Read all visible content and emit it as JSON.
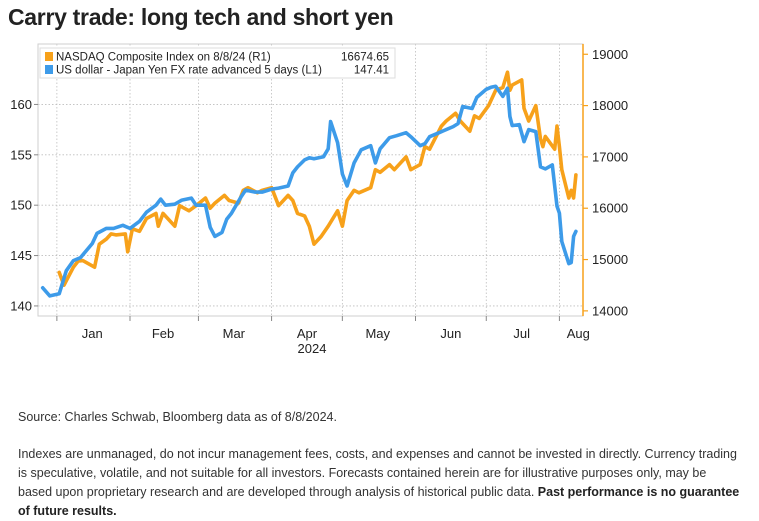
{
  "title": "Carry trade: long tech and short yen",
  "source": "Source: Charles Schwab, Bloomberg data as of 8/8/2024.",
  "disclaimer": "Indexes are unmanaged, do not incur management fees, costs, and expenses and cannot be invested in directly. Currency trading is speculative, volatile, and not suitable for all investors. Forecasts contained herein are for illustrative purposes only, may be based upon proprietary research and are developed through analysis of historical public data.",
  "disclaimer_bold": "Past performance is no guarantee of future results.",
  "colors": {
    "nasdaq": "#F7A11A",
    "usdjpy": "#3D9BE9"
  },
  "chart_data": {
    "type": "line",
    "grid": true,
    "legend_position": "top-left",
    "xlabel": "2024",
    "x_ticks": [
      "Jan",
      "Feb",
      "Mar",
      "Apr",
      "May",
      "Jun",
      "Jul",
      "Aug"
    ],
    "x_range": [
      "2024-01-01",
      "2024-08-08"
    ],
    "y_left": {
      "ticks": [
        "140",
        "145",
        "150",
        "155",
        "160"
      ],
      "range": [
        139,
        166
      ]
    },
    "y_right": {
      "ticks": [
        "14000",
        "15000",
        "16000",
        "17000",
        "18000",
        "19000"
      ],
      "range": [
        13900,
        19200
      ]
    },
    "series": [
      {
        "name": "NASDAQ Composite Index on 8/8/24 (R1)",
        "legend_value": "16674.65",
        "axis": "right",
        "color": "#F7A11A",
        "points": [
          [
            "2024-01-02",
            14750
          ],
          [
            "2024-01-04",
            14500
          ],
          [
            "2024-01-08",
            14850
          ],
          [
            "2024-01-10",
            14970
          ],
          [
            "2024-01-12",
            14980
          ],
          [
            "2024-01-17",
            14850
          ],
          [
            "2024-01-19",
            15300
          ],
          [
            "2024-01-22",
            15400
          ],
          [
            "2024-01-24",
            15500
          ],
          [
            "2024-01-26",
            15480
          ],
          [
            "2024-01-30",
            15500
          ],
          [
            "2024-01-31",
            15150
          ],
          [
            "2024-02-02",
            15600
          ],
          [
            "2024-02-05",
            15550
          ],
          [
            "2024-02-08",
            15800
          ],
          [
            "2024-02-12",
            15900
          ],
          [
            "2024-02-13",
            15650
          ],
          [
            "2024-02-15",
            15900
          ],
          [
            "2024-02-20",
            15650
          ],
          [
            "2024-02-22",
            16050
          ],
          [
            "2024-02-26",
            15950
          ],
          [
            "2024-02-29",
            16050
          ],
          [
            "2024-03-04",
            16200
          ],
          [
            "2024-03-06",
            16000
          ],
          [
            "2024-03-08",
            16100
          ],
          [
            "2024-03-12",
            16250
          ],
          [
            "2024-03-14",
            16150
          ],
          [
            "2024-03-18",
            16100
          ],
          [
            "2024-03-20",
            16350
          ],
          [
            "2024-03-22",
            16400
          ],
          [
            "2024-03-26",
            16300
          ],
          [
            "2024-03-28",
            16350
          ],
          [
            "2024-04-01",
            16400
          ],
          [
            "2024-04-04",
            16050
          ],
          [
            "2024-04-08",
            16250
          ],
          [
            "2024-04-10",
            16150
          ],
          [
            "2024-04-12",
            15900
          ],
          [
            "2024-04-15",
            15850
          ],
          [
            "2024-04-17",
            15650
          ],
          [
            "2024-04-19",
            15300
          ],
          [
            "2024-04-22",
            15450
          ],
          [
            "2024-04-25",
            15650
          ],
          [
            "2024-04-29",
            15950
          ],
          [
            "2024-05-01",
            15650
          ],
          [
            "2024-05-03",
            16150
          ],
          [
            "2024-05-06",
            16350
          ],
          [
            "2024-05-08",
            16300
          ],
          [
            "2024-05-13",
            16400
          ],
          [
            "2024-05-15",
            16750
          ],
          [
            "2024-05-17",
            16700
          ],
          [
            "2024-05-21",
            16850
          ],
          [
            "2024-05-23",
            16750
          ],
          [
            "2024-05-28",
            17000
          ],
          [
            "2024-05-30",
            16750
          ],
          [
            "2024-06-03",
            16850
          ],
          [
            "2024-06-05",
            17200
          ],
          [
            "2024-06-07",
            17150
          ],
          [
            "2024-06-12",
            17600
          ],
          [
            "2024-06-14",
            17700
          ],
          [
            "2024-06-18",
            17850
          ],
          [
            "2024-06-20",
            17700
          ],
          [
            "2024-06-24",
            17500
          ],
          [
            "2024-06-26",
            17800
          ],
          [
            "2024-06-28",
            17750
          ],
          [
            "2024-07-02",
            18000
          ],
          [
            "2024-07-05",
            18300
          ],
          [
            "2024-07-08",
            18350
          ],
          [
            "2024-07-10",
            18650
          ],
          [
            "2024-07-11",
            18300
          ],
          [
            "2024-07-12",
            18400
          ],
          [
            "2024-07-16",
            18500
          ],
          [
            "2024-07-17",
            17950
          ],
          [
            "2024-07-19",
            17700
          ],
          [
            "2024-07-22",
            18000
          ],
          [
            "2024-07-24",
            17350
          ],
          [
            "2024-07-25",
            17200
          ],
          [
            "2024-07-26",
            17400
          ],
          [
            "2024-07-30",
            17150
          ],
          [
            "2024-07-31",
            17600
          ],
          [
            "2024-08-01",
            17200
          ],
          [
            "2024-08-02",
            16750
          ],
          [
            "2024-08-05",
            16200
          ],
          [
            "2024-08-06",
            16350
          ],
          [
            "2024-08-07",
            16200
          ],
          [
            "2024-08-08",
            16650
          ]
        ]
      },
      {
        "name": "US dollar - Japan Yen FX rate advanced 5 days (L1)",
        "legend_value": "147.41",
        "axis": "left",
        "color": "#3D9BE9",
        "points": [
          [
            "2023-12-26",
            141.8
          ],
          [
            "2023-12-29",
            141.0
          ],
          [
            "2024-01-02",
            141.2
          ],
          [
            "2024-01-05",
            143.5
          ],
          [
            "2024-01-08",
            144.5
          ],
          [
            "2024-01-11",
            144.8
          ],
          [
            "2024-01-16",
            146.2
          ],
          [
            "2024-01-18",
            147.2
          ],
          [
            "2024-01-22",
            147.7
          ],
          [
            "2024-01-25",
            147.7
          ],
          [
            "2024-01-29",
            148.0
          ],
          [
            "2024-02-01",
            147.7
          ],
          [
            "2024-02-05",
            148.4
          ],
          [
            "2024-02-08",
            149.3
          ],
          [
            "2024-02-12",
            150.0
          ],
          [
            "2024-02-14",
            150.6
          ],
          [
            "2024-02-16",
            150.0
          ],
          [
            "2024-02-20",
            150.1
          ],
          [
            "2024-02-23",
            150.5
          ],
          [
            "2024-02-27",
            150.7
          ],
          [
            "2024-02-29",
            150.0
          ],
          [
            "2024-03-04",
            150.0
          ],
          [
            "2024-03-06",
            147.8
          ],
          [
            "2024-03-08",
            146.9
          ],
          [
            "2024-03-11",
            147.3
          ],
          [
            "2024-03-13",
            148.6
          ],
          [
            "2024-03-15",
            149.2
          ],
          [
            "2024-03-19",
            150.8
          ],
          [
            "2024-03-21",
            151.5
          ],
          [
            "2024-03-25",
            151.3
          ],
          [
            "2024-03-28",
            151.3
          ],
          [
            "2024-04-01",
            151.6
          ],
          [
            "2024-04-04",
            151.7
          ],
          [
            "2024-04-08",
            151.9
          ],
          [
            "2024-04-10",
            153.2
          ],
          [
            "2024-04-12",
            153.8
          ],
          [
            "2024-04-15",
            154.5
          ],
          [
            "2024-04-17",
            154.7
          ],
          [
            "2024-04-19",
            154.6
          ],
          [
            "2024-04-23",
            154.8
          ],
          [
            "2024-04-25",
            155.6
          ],
          [
            "2024-04-26",
            158.3
          ],
          [
            "2024-04-29",
            156.2
          ],
          [
            "2024-05-01",
            153.1
          ],
          [
            "2024-05-03",
            151.9
          ],
          [
            "2024-05-06",
            154.2
          ],
          [
            "2024-05-09",
            155.5
          ],
          [
            "2024-05-13",
            155.9
          ],
          [
            "2024-05-15",
            154.2
          ],
          [
            "2024-05-17",
            155.6
          ],
          [
            "2024-05-21",
            156.7
          ],
          [
            "2024-05-24",
            156.9
          ],
          [
            "2024-05-28",
            157.2
          ],
          [
            "2024-05-30",
            156.8
          ],
          [
            "2024-06-03",
            155.9
          ],
          [
            "2024-06-05",
            156.1
          ],
          [
            "2024-06-07",
            156.8
          ],
          [
            "2024-06-11",
            157.2
          ],
          [
            "2024-06-13",
            157.4
          ],
          [
            "2024-06-17",
            157.8
          ],
          [
            "2024-06-19",
            158.1
          ],
          [
            "2024-06-21",
            159.8
          ],
          [
            "2024-06-25",
            159.6
          ],
          [
            "2024-06-27",
            160.7
          ],
          [
            "2024-07-01",
            161.5
          ],
          [
            "2024-07-03",
            161.7
          ],
          [
            "2024-07-05",
            161.8
          ],
          [
            "2024-07-08",
            160.8
          ],
          [
            "2024-07-10",
            161.6
          ],
          [
            "2024-07-11",
            158.8
          ],
          [
            "2024-07-12",
            157.9
          ],
          [
            "2024-07-15",
            158.0
          ],
          [
            "2024-07-17",
            156.3
          ],
          [
            "2024-07-19",
            157.5
          ],
          [
            "2024-07-22",
            157.3
          ],
          [
            "2024-07-24",
            153.8
          ],
          [
            "2024-07-26",
            153.6
          ],
          [
            "2024-07-29",
            154.0
          ],
          [
            "2024-07-31",
            149.9
          ],
          [
            "2024-08-01",
            149.2
          ],
          [
            "2024-08-02",
            146.4
          ],
          [
            "2024-08-05",
            144.2
          ],
          [
            "2024-08-06",
            144.3
          ],
          [
            "2024-08-07",
            146.9
          ],
          [
            "2024-08-08",
            147.4
          ]
        ]
      }
    ]
  }
}
